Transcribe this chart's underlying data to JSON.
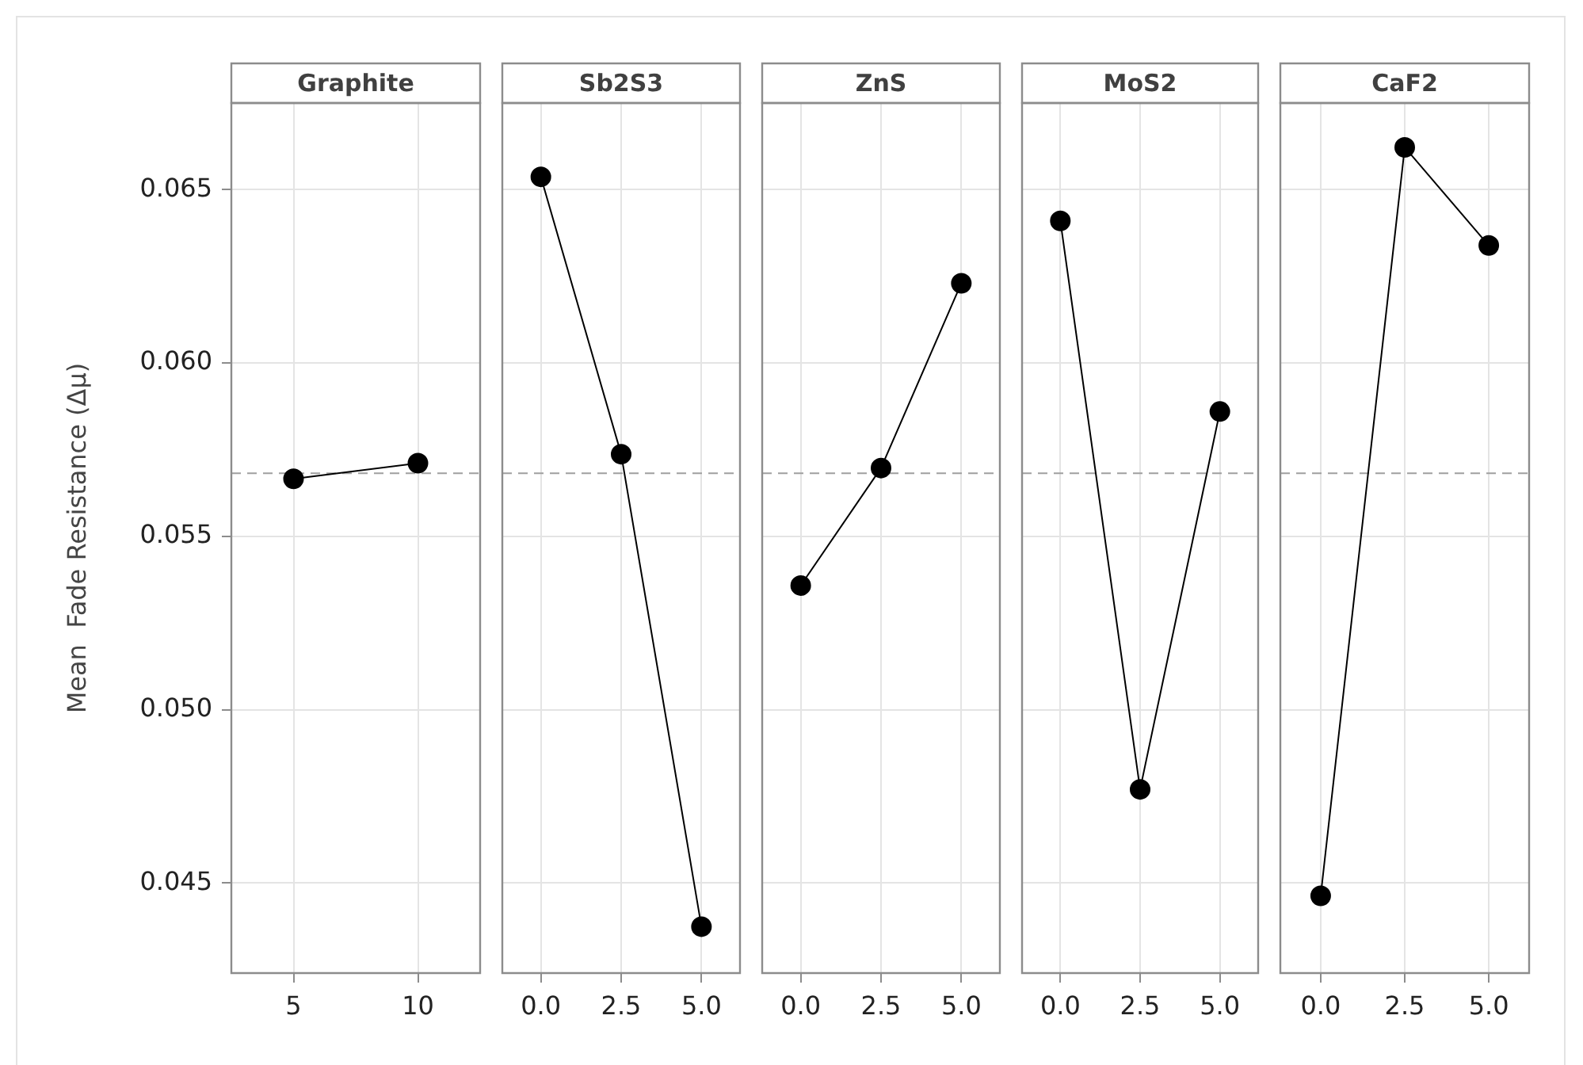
{
  "chart_data": [
    {
      "type": "line",
      "title": "Graphite",
      "ylabel": "Mean  Fade Resistance (Δμ)",
      "x": [
        5,
        10
      ],
      "values": [
        0.05666,
        0.05711
      ],
      "color": "#000000",
      "xlim": [
        2.5,
        12.5
      ],
      "xticks": [
        5,
        10
      ],
      "ylim": [
        0.0424,
        0.0675
      ],
      "yticks": [
        {
          "value": 0.045,
          "label": "0.045"
        },
        {
          "value": 0.05,
          "label": "0.050"
        },
        {
          "value": 0.055,
          "label": "0.055"
        },
        {
          "value": 0.06,
          "label": "0.060"
        },
        {
          "value": 0.065,
          "label": "0.065"
        }
      ],
      "ref_lines": [
        {
          "axis": "y",
          "value": 0.05682,
          "color": "#a0a0a0",
          "line_style": "dashed"
        }
      ],
      "grid": true,
      "marker": "circle"
    },
    {
      "type": "line",
      "title": "Sb2S3",
      "x": [
        0,
        2.5,
        5
      ],
      "values": [
        0.06537,
        0.05737,
        0.04374
      ],
      "color": "#000000",
      "xlim": [
        -1.2,
        6.2
      ],
      "xticks": [
        {
          "value": 0,
          "label": "0.0"
        },
        {
          "value": 2.5,
          "label": "2.5"
        },
        {
          "value": 5,
          "label": "5.0"
        }
      ],
      "ylim": [
        0.0424,
        0.0675
      ],
      "yticks": [
        0.045,
        0.05,
        0.055,
        0.06,
        0.065
      ],
      "ref_lines": [
        {
          "axis": "y",
          "value": 0.05682,
          "color": "#a0a0a0",
          "line_style": "dashed"
        }
      ],
      "grid": true,
      "marker": "circle",
      "tick_labels": "x"
    },
    {
      "type": "line",
      "title": "ZnS",
      "x": [
        0,
        2.5,
        5
      ],
      "values": [
        0.05358,
        0.05697,
        0.0623
      ],
      "color": "#000000",
      "xlim": [
        -1.2,
        6.2
      ],
      "xticks": [
        {
          "value": 0,
          "label": "0.0"
        },
        {
          "value": 2.5,
          "label": "2.5"
        },
        {
          "value": 5,
          "label": "5.0"
        }
      ],
      "ylim": [
        0.0424,
        0.0675
      ],
      "yticks": [
        0.045,
        0.05,
        0.055,
        0.06,
        0.065
      ],
      "ref_lines": [
        {
          "axis": "y",
          "value": 0.05682,
          "color": "#a0a0a0",
          "line_style": "dashed"
        }
      ],
      "grid": true,
      "marker": "circle",
      "tick_labels": "x"
    },
    {
      "type": "line",
      "title": "MoS2",
      "x": [
        0,
        2.5,
        5
      ],
      "values": [
        0.0641,
        0.0477,
        0.0586
      ],
      "color": "#000000",
      "xlim": [
        -1.2,
        6.2
      ],
      "xticks": [
        {
          "value": 0,
          "label": "0.0"
        },
        {
          "value": 2.5,
          "label": "2.5"
        },
        {
          "value": 5,
          "label": "5.0"
        }
      ],
      "ylim": [
        0.0424,
        0.0675
      ],
      "yticks": [
        0.045,
        0.05,
        0.055,
        0.06,
        0.065
      ],
      "ref_lines": [
        {
          "axis": "y",
          "value": 0.05682,
          "color": "#a0a0a0",
          "line_style": "dashed"
        }
      ],
      "grid": true,
      "marker": "circle",
      "tick_labels": "x"
    },
    {
      "type": "line",
      "title": "CaF2",
      "x": [
        0,
        2.5,
        5
      ],
      "values": [
        0.04463,
        0.06622,
        0.06339
      ],
      "color": "#000000",
      "xlim": [
        -1.2,
        6.2
      ],
      "xticks": [
        {
          "value": 0,
          "label": "0.0"
        },
        {
          "value": 2.5,
          "label": "2.5"
        },
        {
          "value": 5,
          "label": "5.0"
        }
      ],
      "ylim": [
        0.0424,
        0.0675
      ],
      "yticks": [
        0.045,
        0.05,
        0.055,
        0.06,
        0.065
      ],
      "ref_lines": [
        {
          "axis": "y",
          "value": 0.05682,
          "color": "#a0a0a0",
          "line_style": "dashed"
        }
      ],
      "grid": true,
      "marker": "circle",
      "tick_labels": "x"
    }
  ]
}
